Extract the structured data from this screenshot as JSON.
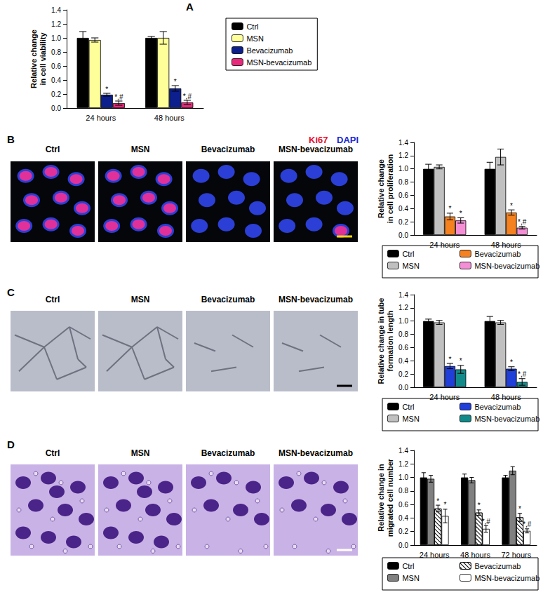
{
  "chart_data": [
    {
      "panel": "A",
      "type": "bar",
      "ylabel": "Relative change\nin cell viability",
      "categories": [
        "24 hours",
        "48 hours"
      ],
      "series": [
        {
          "name": "Ctrl",
          "color": "#000000",
          "values": [
            1.0,
            1.0
          ],
          "errors": [
            0.09,
            0.02
          ],
          "annotations": [
            null,
            null
          ]
        },
        {
          "name": "MSN",
          "color": "#ffff99",
          "values": [
            0.97,
            1.0
          ],
          "errors": [
            0.03,
            0.09
          ],
          "annotations": [
            null,
            null
          ]
        },
        {
          "name": "Bevacizumab",
          "color": "#0d1f8c",
          "values": [
            0.19,
            0.28
          ],
          "errors": [
            0.02,
            0.04
          ],
          "annotations": [
            "*",
            "*"
          ]
        },
        {
          "name": "MSN-bevacizumab",
          "color": "#e8287a",
          "values": [
            0.07,
            0.08
          ],
          "errors": [
            0.03,
            0.03
          ],
          "annotations": [
            "*,#",
            "*,#"
          ]
        }
      ],
      "ylim": [
        0,
        1.4
      ],
      "yticks": [
        {
          "value": 0,
          "label": "0.0"
        },
        0.2,
        0.4,
        0.6,
        0.8,
        {
          "value": 1,
          "label": "1.0"
        },
        1.2,
        1.4
      ],
      "legend": "right",
      "grid": false
    },
    {
      "panel": "B",
      "type": "bar",
      "image_labels": [
        "Ctrl",
        "MSN",
        "Bevacizumab",
        "MSN-bevacizumab"
      ],
      "stain_labels": [
        {
          "text": "Ki67",
          "color": "#e8102a"
        },
        {
          "text": "DAPI",
          "color": "#1a2ad8"
        }
      ],
      "ylabel": "Relative change\nin cell proliferation",
      "categories": [
        "24 hours",
        "48 hours"
      ],
      "series": [
        {
          "name": "Ctrl",
          "color": "#000000",
          "values": [
            1.0,
            1.0
          ],
          "errors": [
            0.07,
            0.1
          ],
          "annotations": [
            null,
            null
          ]
        },
        {
          "name": "MSN",
          "color": "#c0c0c0",
          "values": [
            1.03,
            1.18
          ],
          "errors": [
            0.03,
            0.12
          ],
          "annotations": [
            null,
            null
          ]
        },
        {
          "name": "Bevacizumab",
          "color": "#f58220",
          "values": [
            0.28,
            0.34
          ],
          "errors": [
            0.05,
            0.04
          ],
          "annotations": [
            "*",
            "*"
          ]
        },
        {
          "name": "MSN-bevacizumab",
          "color": "#f48fd6",
          "values": [
            0.22,
            0.11
          ],
          "errors": [
            0.04,
            0.02
          ],
          "annotations": [
            "*",
            "*,#"
          ]
        }
      ],
      "ylim": [
        0,
        1.4
      ],
      "yticks": [
        {
          "value": 0,
          "label": "0.0"
        },
        0.2,
        0.4,
        0.6,
        0.8,
        {
          "value": 1,
          "label": "1.0"
        },
        1.2,
        1.4
      ],
      "legend": "bottom",
      "grid": false
    },
    {
      "panel": "C",
      "type": "bar",
      "image_labels": [
        "Ctrl",
        "MSN",
        "Bevacizumab",
        "MSN-bevacizumab"
      ],
      "ylabel": "Relative change in tube\nformation length",
      "categories": [
        "24 hours",
        "48 hours"
      ],
      "series": [
        {
          "name": "Ctrl",
          "color": "#000000",
          "values": [
            1.0,
            1.0
          ],
          "errors": [
            0.03,
            0.07
          ],
          "annotations": [
            null,
            null
          ]
        },
        {
          "name": "MSN",
          "color": "#c0c0c0",
          "values": [
            0.98,
            0.98
          ],
          "errors": [
            0.03,
            0.03
          ],
          "annotations": [
            null,
            null
          ]
        },
        {
          "name": "Bevacizumab",
          "color": "#1f3fd8",
          "values": [
            0.32,
            0.28
          ],
          "errors": [
            0.04,
            0.03
          ],
          "annotations": [
            "*",
            "*"
          ]
        },
        {
          "name": "MSN-bevacizumab",
          "color": "#138a8a",
          "values": [
            0.27,
            0.08
          ],
          "errors": [
            0.06,
            0.05
          ],
          "annotations": [
            "*",
            "*,#"
          ]
        }
      ],
      "ylim": [
        0,
        1.4
      ],
      "yticks": [
        {
          "value": 0,
          "label": "0.0"
        },
        0.2,
        0.4,
        0.6,
        0.8,
        {
          "value": 1,
          "label": "1.0"
        },
        1.2,
        1.4
      ],
      "legend": "bottom",
      "grid": false
    },
    {
      "panel": "D",
      "type": "bar",
      "image_labels": [
        "Ctrl",
        "MSN",
        "Bevacizumab",
        "MSN-bevacizumab"
      ],
      "ylabel": "Relative change in\nmigrated cell number",
      "categories": [
        "24 hours",
        "48 hours",
        "72 hours"
      ],
      "series": [
        {
          "name": "Ctrl",
          "color": "#000000",
          "values": [
            1.0,
            1.0,
            1.0
          ],
          "errors": [
            0.07,
            0.05,
            0.03
          ],
          "annotations": [
            null,
            null,
            null
          ]
        },
        {
          "name": "MSN",
          "color": "#808080",
          "values": [
            0.98,
            0.96,
            1.1
          ],
          "errors": [
            0.05,
            0.04,
            0.06
          ],
          "annotations": [
            null,
            null,
            null
          ]
        },
        {
          "name": "Bevacizumab",
          "color": "#ffffff",
          "line_style": "hatch",
          "values": [
            0.54,
            0.48,
            0.41
          ],
          "errors": [
            0.05,
            0.04,
            0.06
          ],
          "annotations": [
            "*",
            "*",
            "*"
          ]
        },
        {
          "name": "MSN-bevacizumab",
          "color": "#ffffff",
          "values": [
            0.43,
            0.24,
            0.21
          ],
          "errors": [
            0.1,
            0.05,
            0.03
          ],
          "annotations": [
            "*",
            "*,#",
            "*,#"
          ]
        }
      ],
      "ylim": [
        0,
        1.4
      ],
      "yticks": [
        {
          "value": 0,
          "label": "0.0"
        },
        0.2,
        0.4,
        0.6,
        0.8,
        {
          "value": 1,
          "label": "1.0"
        },
        1.2,
        1.4
      ],
      "legend": "bottom",
      "grid": false
    }
  ]
}
